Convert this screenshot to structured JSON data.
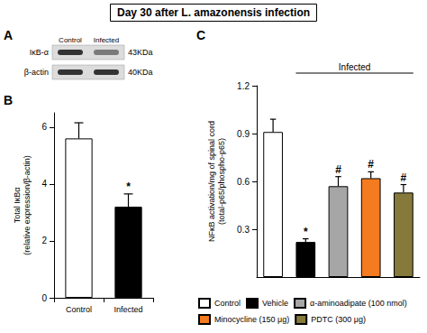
{
  "title": "Day 30 after L. amazonensis infection",
  "panel_a": {
    "letter": "A",
    "lanes": [
      "Control",
      "Infected"
    ],
    "bands": [
      {
        "label": "IκB-α",
        "size": "43KDa"
      },
      {
        "label": "β-actin",
        "size": "40KDa"
      }
    ]
  },
  "chart_data": [
    {
      "type": "bar",
      "letter": "B",
      "y_label": "Total IκBα (relative expression/β-actin)",
      "categories": [
        "Control",
        "Infected"
      ],
      "values": [
        5.6,
        3.2
      ],
      "errors": [
        0.55,
        0.45
      ],
      "colors": [
        "#ffffff",
        "#000000"
      ],
      "annotations": [
        {
          "category": "Infected",
          "text": "*"
        }
      ],
      "ylim": [
        0,
        6.5
      ],
      "yticks": [
        0,
        2,
        4,
        6
      ],
      "grid": false
    },
    {
      "type": "bar",
      "letter": "C",
      "y_label": "NFκB activation/mg of spinal cord (total-p65/phospho-p65)",
      "categories": [
        "Control",
        "Vehicle",
        "α-aminoadipate (100 nmol)",
        "Minocycline (150 μg)",
        "PDTC (300 μg)"
      ],
      "values": [
        0.91,
        0.22,
        0.57,
        0.62,
        0.53
      ],
      "errors": [
        0.08,
        0.02,
        0.06,
        0.04,
        0.05
      ],
      "colors": [
        "#ffffff",
        "#000000",
        "#a6a6a6",
        "#f47b20",
        "#857a3c"
      ],
      "annotations": [
        {
          "category": "Vehicle",
          "text": "*"
        },
        {
          "category": "α-aminoadipate (100 nmol)",
          "text": "#"
        },
        {
          "category": "Minocycline (150 μg)",
          "text": "#"
        },
        {
          "category": "PDTC (300 μg)",
          "text": "#"
        }
      ],
      "group": {
        "label": "Infected",
        "categories": [
          "Vehicle",
          "α-aminoadipate (100 nmol)",
          "Minocycline (150 μg)",
          "PDTC (300 μg)"
        ]
      },
      "ylim": [
        0,
        1.2
      ],
      "yticks": [
        0.3,
        0.6,
        0.9,
        1.2
      ],
      "tick_labels": "y",
      "legend": "bottom",
      "grid": false
    }
  ]
}
